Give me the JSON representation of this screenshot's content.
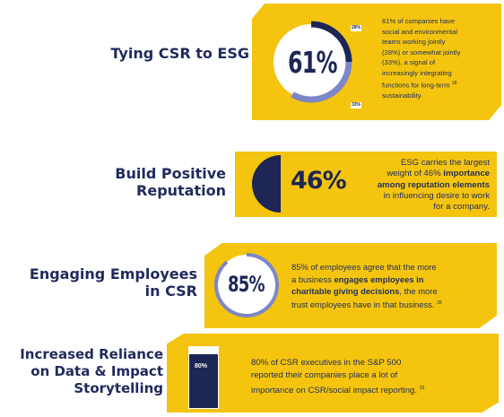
{
  "colors": {
    "yellow": "#f4c40f",
    "navy": "#1d2654",
    "periwinkle": "#7d86c8",
    "label_navy": "#1f2a5c"
  },
  "sections": [
    {
      "label_lines": [
        "Tying CSR to ESG"
      ],
      "big_stat": "61%",
      "ring_labels": [
        "28%",
        "33%"
      ],
      "text_lines": [
        "61% of companies have",
        "social and environmental",
        "teams working jointly",
        "(28%) or somewhat jointly",
        "(33%), a signal of",
        "increasingly integrating",
        "functions for long-term",
        "sustainability."
      ],
      "footnote": "18"
    },
    {
      "label_lines": [
        "Build Positive",
        "Reputation"
      ],
      "big_stat": "46%",
      "text_line_1": "ESG carries the largest",
      "text_line_2_pre": "weight of 46% ",
      "text_line_2_bold": "importance",
      "text_line_3_bold": "among reputation elements",
      "text_line_4": "in influencing desire to work",
      "text_line_5": "for a company."
    },
    {
      "label_lines": [
        "Engaging Employees",
        "in CSR"
      ],
      "big_stat": "85%",
      "text_line_1": "85% of employees agree that the more",
      "text_line_2_pre": "a business ",
      "text_line_2_bold": "engages employees in",
      "text_line_3_bold": "charitable giving decisions",
      "text_line_3_post": ", the more",
      "text_line_4": "trust employees have in that business.",
      "footnote": "28"
    },
    {
      "label_lines": [
        "Increased Reliance",
        "on Data & Impact",
        "Storytelling"
      ],
      "big_stat": "80%",
      "text_lines": [
        "80% of CSR executives in the S&P 500",
        "reported their companies place a lot of",
        "importance on CSR/social impact reporting."
      ],
      "footnote": "33",
      "bar_fill": 0.8
    }
  ]
}
